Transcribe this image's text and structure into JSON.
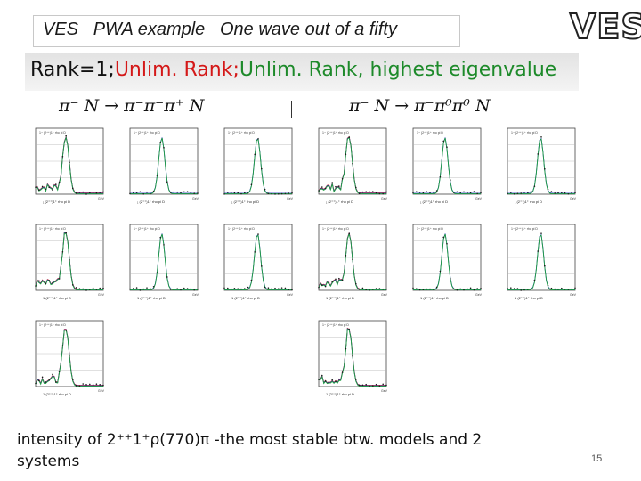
{
  "slide": {
    "title": "VES   PWA example   One wave out of a fifty",
    "logo": "VES",
    "banner": {
      "part1": "Rank=1;",
      "part2": "Unlim. Rank;",
      "part3": "Unlim. Rank, highest eigenvalue"
    },
    "reaction_left": "π⁻ N → π⁻π⁻π⁺ N",
    "reaction_right": "π⁻ N → π⁻π⁰π⁰ N",
    "bottom_line1": "intensity of 2⁺⁺1⁺ρ(770)π  -the most stable btw. models and 2",
    "bottom_line2": "systems",
    "page_number": "15"
  },
  "plot_grid": {
    "columns": 6,
    "rows": 3,
    "xlabel_row1": "₁ (2⁺⁺)1⁺ rho pi D",
    "xlabel_other": "1 (2⁺⁺)1⁺ rho pi D",
    "unit": "GeV",
    "panel_header": "1− (2⁺⁺)1⁺ rho pi D",
    "colors": {
      "data": "#1a1a1a",
      "fit_rank1": "#d02020",
      "fit_unlim": "#2030c0",
      "fit_eigen": "#20a040",
      "grid": "#b0b0b0"
    }
  }
}
